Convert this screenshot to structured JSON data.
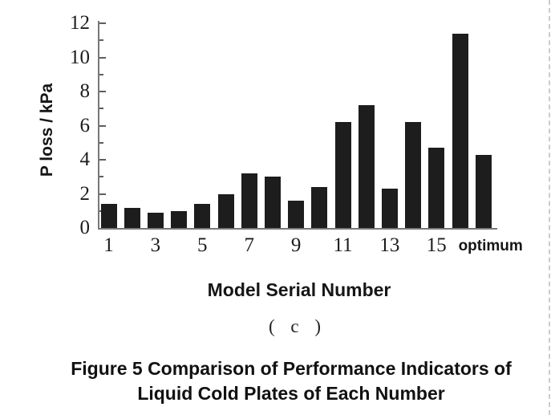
{
  "figure": {
    "subfigure_label": "( c )",
    "caption_line1": "Figure 5 Comparison of Performance Indicators of",
    "caption_line2": "Liquid Cold Plates of Each Number"
  },
  "chart_data": {
    "type": "bar",
    "title": "",
    "categories": [
      "1",
      "2",
      "3",
      "4",
      "5",
      "6",
      "7",
      "8",
      "9",
      "10",
      "11",
      "12",
      "13",
      "14",
      "15",
      "16",
      "optimum"
    ],
    "values": [
      1.4,
      1.2,
      0.9,
      1.0,
      1.4,
      2.0,
      3.2,
      3.0,
      1.6,
      2.4,
      6.2,
      7.2,
      2.3,
      6.2,
      4.7,
      11.4,
      4.3
    ],
    "x_tick_labels": [
      "1",
      "3",
      "5",
      "7",
      "9",
      "11",
      "13",
      "15",
      "optimum"
    ],
    "xlabel": "Model Serial Number",
    "ylabel": "P loss / kPa",
    "ylim": [
      0,
      12
    ],
    "ytick_step": 2,
    "minor_tick_step": 1,
    "grid": false,
    "legend": null,
    "bar_color": "#1d1d1d",
    "axis_color": "#787878"
  }
}
